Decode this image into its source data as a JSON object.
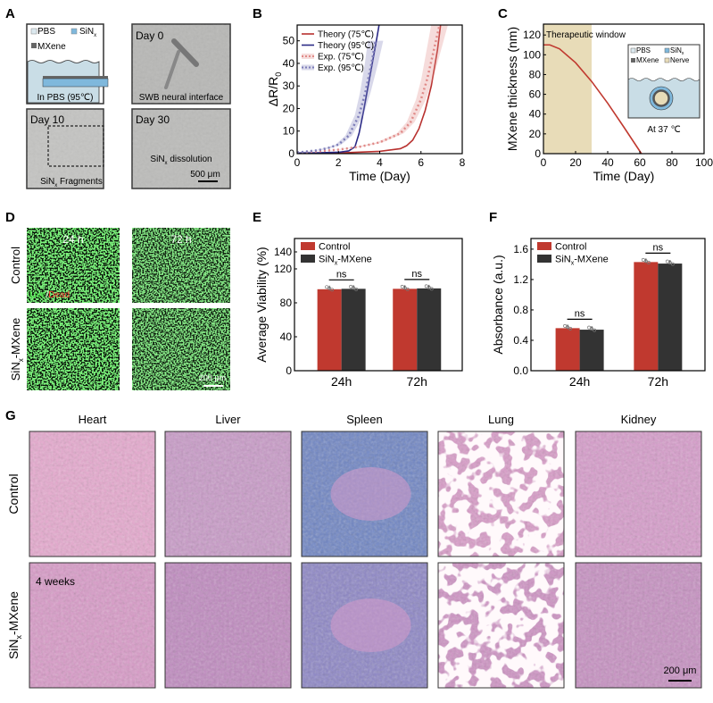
{
  "panels": {
    "A": {
      "label": "A",
      "legend": {
        "pbs": "PBS",
        "sin": "SiN",
        "sin_sub": "x",
        "mxene": "MXene"
      },
      "schematic_caption": "In PBS (95℃)",
      "day0": "Day 0",
      "day0_caption": "SWB neural interface",
      "day10": "Day 10",
      "day10_caption_main": "SiN",
      "day10_caption_sub": "x",
      "day10_caption_rest": " Fragments",
      "day30": "Day 30",
      "day30_caption_main": "SiN",
      "day30_caption_sub": "x",
      "day30_caption_rest": " dissolution",
      "scale": "500 μm"
    },
    "B": {
      "label": "B"
    },
    "C": {
      "label": "C",
      "window_label": "Therapeutic window",
      "inset": {
        "pbs": "PBS",
        "sin": "SiN",
        "sin_sub": "x",
        "mxene": "MXene",
        "nerve": "Nerve",
        "temp": "At 37 ℃"
      }
    },
    "D": {
      "label": "D",
      "t1": "24 h",
      "t2": "72 h",
      "row1": "Control",
      "row2_main": "SiN",
      "row2_sub": "x",
      "row2_rest": "-MXene",
      "live": "Live",
      "slash": "/",
      "dead": "Dead",
      "scale": "200 μm"
    },
    "E": {
      "label": "E"
    },
    "F": {
      "label": "F"
    },
    "G": {
      "label": "G",
      "organs": [
        "Heart",
        "Liver",
        "Spleen",
        "Lung",
        "Kidney"
      ],
      "row1": "Control",
      "row2_main": "SiN",
      "row2_sub": "x",
      "row2_rest": "-MXene",
      "duration": "4 weeks",
      "scale": "200 μm"
    }
  },
  "colors": {
    "red": "#c0392f",
    "navy": "#2b2a86",
    "dark": "#333333",
    "beige": "#e8dcb8",
    "pbs": "#c9dde6",
    "sin": "#7fb8dc"
  },
  "chart_data": [
    {
      "id": "B",
      "type": "line",
      "xlabel": "Time (Day)",
      "ylabel": "ΔR/R",
      "ylabel_sub": "0",
      "xlim": [
        0,
        8
      ],
      "ylim": [
        0,
        57
      ],
      "xticks": [
        0,
        2,
        4,
        6,
        8
      ],
      "yticks": [
        0,
        10,
        20,
        30,
        40,
        50
      ],
      "series": [
        {
          "name": "Theory (75℃)",
          "style": "solid",
          "color": "#b8312f",
          "x": [
            0,
            2,
            4,
            5,
            5.3,
            5.6,
            5.9,
            6.2,
            6.5,
            6.8,
            6.95
          ],
          "y": [
            0,
            0.3,
            1,
            2.2,
            3.5,
            6,
            11,
            19,
            30,
            46,
            57
          ]
        },
        {
          "name": "Theory (95℃)",
          "style": "solid",
          "color": "#2b2a86",
          "x": [
            0,
            1,
            2,
            2.5,
            2.8,
            3,
            3.2,
            3.4,
            3.6,
            3.8,
            3.97
          ],
          "y": [
            0.3,
            0.4,
            0.6,
            1.2,
            3,
            9,
            18,
            28,
            38,
            48,
            57
          ]
        },
        {
          "name": "Exp. (75℃)",
          "style": "dotted-band",
          "color": "#e08a88",
          "x": [
            0,
            1,
            2,
            3,
            4,
            5,
            5.5,
            6,
            6.3,
            6.6,
            6.9
          ],
          "y": [
            0.5,
            1,
            1.8,
            3,
            5,
            9,
            14,
            24,
            33,
            45,
            57
          ]
        },
        {
          "name": "Exp. (95℃)",
          "style": "dotted-band",
          "color": "#7d7db8",
          "x": [
            0,
            1,
            1.5,
            2,
            2.5,
            3,
            3.3,
            3.6,
            3.8
          ],
          "y": [
            0.5,
            1.5,
            2.5,
            4,
            8,
            17,
            27,
            40,
            50
          ]
        }
      ]
    },
    {
      "id": "C",
      "type": "line",
      "xlabel": "Time (Day)",
      "ylabel": "MXene thickness (nm)",
      "xlim": [
        0,
        100
      ],
      "ylim": [
        0,
        131
      ],
      "xticks": [
        0,
        20,
        40,
        60,
        80,
        100
      ],
      "yticks": [
        0,
        20,
        40,
        60,
        80,
        100,
        120
      ],
      "shaded_window": [
        0,
        30
      ],
      "series": [
        {
          "name": "MXene thickness",
          "x": [
            0,
            4,
            10,
            20,
            30,
            40,
            50,
            61
          ],
          "y": [
            110,
            110,
            106,
            92,
            73,
            51,
            27,
            0
          ]
        }
      ]
    },
    {
      "id": "E",
      "type": "bar",
      "categories": [
        "24h",
        "72h"
      ],
      "ylabel": "Average Viability (%)",
      "ylim": [
        0,
        140
      ],
      "yticks": [
        0,
        40,
        80,
        120,
        140
      ],
      "significance": [
        "ns",
        "ns"
      ],
      "series": [
        {
          "name": "Control",
          "values": [
            96,
            96.5
          ]
        },
        {
          "name": "SiN",
          "name_sub": "x",
          "name_rest": "-MXene",
          "values": [
            96.5,
            97
          ]
        }
      ]
    },
    {
      "id": "F",
      "type": "bar",
      "categories": [
        "24h",
        "72h"
      ],
      "ylabel": "Absorbance (a.u.)",
      "ylim": [
        0,
        1.74
      ],
      "yticks": [
        "0.0",
        "0.4",
        "0.8",
        "1.2",
        "1.6"
      ],
      "significance": [
        "ns",
        "ns"
      ],
      "series": [
        {
          "name": "Control",
          "values": [
            0.56,
            1.43
          ]
        },
        {
          "name": "SiN",
          "name_sub": "x",
          "name_rest": "-MXene",
          "values": [
            0.54,
            1.41
          ]
        }
      ]
    }
  ]
}
